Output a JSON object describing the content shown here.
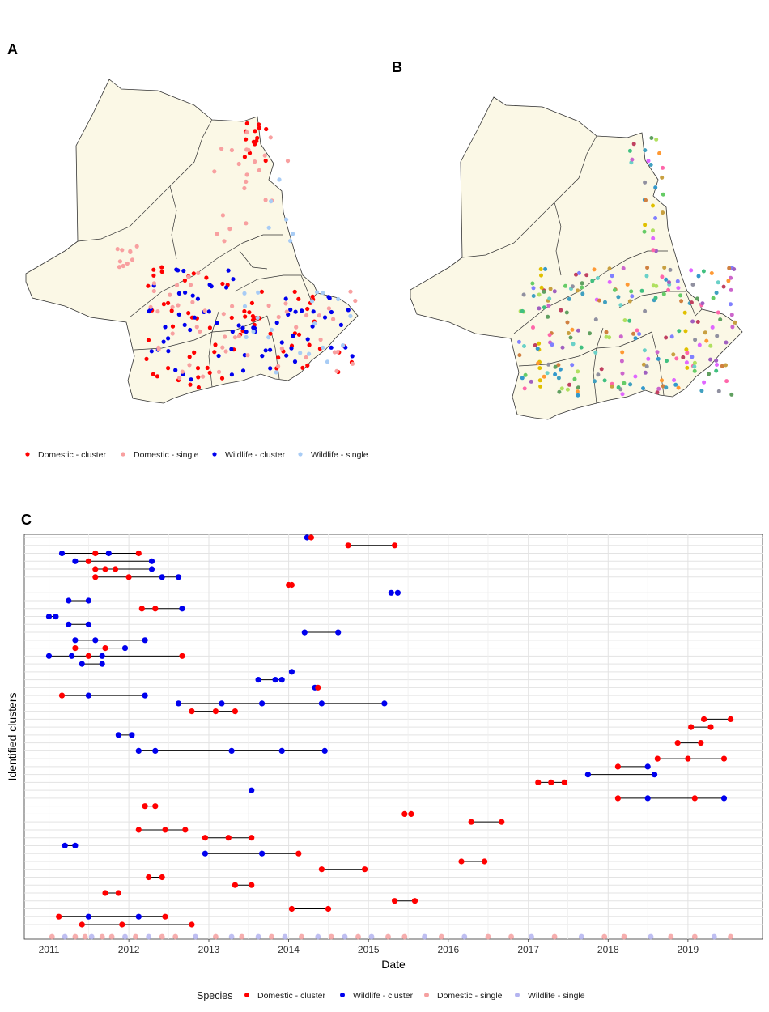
{
  "panels": {
    "a": "A",
    "b": "B",
    "c": "C"
  },
  "colors": {
    "domestic_cluster": "#ff0000",
    "domestic_single": "#f8a0a0",
    "wildlife_cluster": "#0000ee",
    "wildlife_single": "#a8ccf5",
    "timeline_domestic_single": "#f5a0a0",
    "timeline_wildlife_single": "#b4b4f0"
  },
  "map_legend": [
    {
      "label": "Domestic - cluster",
      "color": "#ff0000"
    },
    {
      "label": "Domestic - single",
      "color": "#f8a0a0"
    },
    {
      "label": "Wildlife - cluster",
      "color": "#0000ee"
    },
    {
      "label": "Wildlife - single",
      "color": "#a8ccf5"
    }
  ],
  "chart_data": {
    "type": "scatter",
    "xlabel": "Date",
    "ylabel": "Identified clusters",
    "xlim": [
      "2010-09-10",
      "2019-12-08"
    ],
    "x_ticks": [
      "2011",
      "2012",
      "2013",
      "2014",
      "2015",
      "2016",
      "2017",
      "2018",
      "2019"
    ],
    "cluster_count": 50,
    "grid": true,
    "legend_position": "bottom",
    "legend_title": "Species",
    "legend": [
      {
        "label": "Domestic - cluster",
        "color": "#ff0000"
      },
      {
        "label": "Wildlife - cluster",
        "color": "#0000ee"
      },
      {
        "label": "Domestic - single",
        "color": "#f5a0a0"
      },
      {
        "label": "Wildlife - single",
        "color": "#b4b4f0"
      }
    ],
    "clusters": [
      {
        "rank": 50,
        "points": [
          [
            "2014-03-26",
            "Wildlife - cluster"
          ],
          [
            "2014-04-14",
            "Domestic - cluster"
          ]
        ]
      },
      {
        "rank": 49,
        "points": [
          [
            "2014-09-30",
            "Domestic - cluster"
          ],
          [
            "2015-05-01",
            "Domestic - cluster"
          ]
        ]
      },
      {
        "rank": 48,
        "points": [
          [
            "2011-03-01",
            "Wildlife - cluster"
          ],
          [
            "2011-08-01",
            "Domestic - cluster"
          ],
          [
            "2011-10-01",
            "Wildlife - cluster"
          ],
          [
            "2012-02-15",
            "Domestic - cluster"
          ]
        ]
      },
      {
        "rank": 47,
        "points": [
          [
            "2011-05-01",
            "Wildlife - cluster"
          ],
          [
            "2011-07-01",
            "Domestic - cluster"
          ],
          [
            "2012-04-15",
            "Wildlife - cluster"
          ]
        ]
      },
      {
        "rank": 46,
        "points": [
          [
            "2011-08-01",
            "Domestic - cluster"
          ],
          [
            "2011-09-15",
            "Domestic - cluster"
          ],
          [
            "2011-11-01",
            "Domestic - cluster"
          ],
          [
            "2012-04-15",
            "Wildlife - cluster"
          ]
        ]
      },
      {
        "rank": 45,
        "points": [
          [
            "2011-08-01",
            "Domestic - cluster"
          ],
          [
            "2012-01-01",
            "Domestic - cluster"
          ],
          [
            "2012-06-01",
            "Wildlife - cluster"
          ],
          [
            "2012-08-15",
            "Wildlife - cluster"
          ]
        ]
      },
      {
        "rank": 44,
        "points": [
          [
            "2014-01-01",
            "Domestic - cluster"
          ],
          [
            "2014-01-15",
            "Domestic - cluster"
          ]
        ]
      },
      {
        "rank": 43,
        "points": [
          [
            "2015-04-15",
            "Wildlife - cluster"
          ],
          [
            "2015-05-15",
            "Wildlife - cluster"
          ]
        ]
      },
      {
        "rank": 42,
        "points": [
          [
            "2011-04-01",
            "Wildlife - cluster"
          ],
          [
            "2011-07-01",
            "Wildlife - cluster"
          ]
        ]
      },
      {
        "rank": 41,
        "points": [
          [
            "2012-03-01",
            "Domestic - cluster"
          ],
          [
            "2012-05-01",
            "Domestic - cluster"
          ],
          [
            "2012-09-01",
            "Wildlife - cluster"
          ]
        ]
      },
      {
        "rank": 40,
        "points": [
          [
            "2011-01-01",
            "Wildlife - cluster"
          ],
          [
            "2011-02-01",
            "Wildlife - cluster"
          ]
        ]
      },
      {
        "rank": 39,
        "points": [
          [
            "2011-04-01",
            "Wildlife - cluster"
          ],
          [
            "2011-07-01",
            "Wildlife - cluster"
          ]
        ]
      },
      {
        "rank": 38,
        "points": [
          [
            "2014-03-15",
            "Wildlife - cluster"
          ],
          [
            "2014-08-15",
            "Wildlife - cluster"
          ]
        ]
      },
      {
        "rank": 37,
        "points": [
          [
            "2011-05-01",
            "Wildlife - cluster"
          ],
          [
            "2011-08-01",
            "Wildlife - cluster"
          ],
          [
            "2012-03-15",
            "Wildlife - cluster"
          ]
        ]
      },
      {
        "rank": 36,
        "points": [
          [
            "2011-05-01",
            "Domestic - cluster"
          ],
          [
            "2011-09-15",
            "Domestic - cluster"
          ],
          [
            "2011-12-15",
            "Wildlife - cluster"
          ]
        ]
      },
      {
        "rank": 35,
        "points": [
          [
            "2011-01-01",
            "Wildlife - cluster"
          ],
          [
            "2011-04-15",
            "Wildlife - cluster"
          ],
          [
            "2011-07-01",
            "Domestic - cluster"
          ],
          [
            "2011-09-01",
            "Wildlife - cluster"
          ],
          [
            "2012-09-01",
            "Domestic - cluster"
          ]
        ]
      },
      {
        "rank": 34,
        "points": [
          [
            "2011-06-01",
            "Wildlife - cluster"
          ],
          [
            "2011-09-01",
            "Wildlife - cluster"
          ]
        ]
      },
      {
        "rank": 33,
        "points": [
          [
            "2014-01-15",
            "Wildlife - cluster"
          ]
        ]
      },
      {
        "rank": 32,
        "points": [
          [
            "2013-08-15",
            "Wildlife - cluster"
          ],
          [
            "2013-11-01",
            "Wildlife - cluster"
          ],
          [
            "2013-12-01",
            "Wildlife - cluster"
          ]
        ]
      },
      {
        "rank": 31,
        "points": [
          [
            "2014-05-01",
            "Wildlife - cluster"
          ],
          [
            "2014-05-15",
            "Domestic - cluster"
          ]
        ]
      },
      {
        "rank": 30,
        "points": [
          [
            "2011-03-01",
            "Domestic - cluster"
          ],
          [
            "2011-07-01",
            "Wildlife - cluster"
          ],
          [
            "2012-03-15",
            "Wildlife - cluster"
          ]
        ]
      },
      {
        "rank": 29,
        "points": [
          [
            "2012-08-15",
            "Wildlife - cluster"
          ],
          [
            "2013-03-01",
            "Wildlife - cluster"
          ],
          [
            "2013-09-01",
            "Wildlife - cluster"
          ],
          [
            "2014-06-01",
            "Wildlife - cluster"
          ],
          [
            "2015-03-15",
            "Wildlife - cluster"
          ]
        ]
      },
      {
        "rank": 28,
        "points": [
          [
            "2012-10-15",
            "Domestic - cluster"
          ],
          [
            "2013-02-01",
            "Domestic - cluster"
          ],
          [
            "2013-05-01",
            "Domestic - cluster"
          ]
        ]
      },
      {
        "rank": 27,
        "points": [
          [
            "2019-03-15",
            "Domestic - cluster"
          ],
          [
            "2019-07-15",
            "Domestic - cluster"
          ]
        ]
      },
      {
        "rank": 26,
        "points": [
          [
            "2019-01-15",
            "Domestic - cluster"
          ],
          [
            "2019-04-15",
            "Domestic - cluster"
          ]
        ]
      },
      {
        "rank": 25,
        "points": [
          [
            "2011-11-15",
            "Wildlife - cluster"
          ],
          [
            "2012-01-15",
            "Wildlife - cluster"
          ]
        ]
      },
      {
        "rank": 24,
        "points": [
          [
            "2018-11-15",
            "Domestic - cluster"
          ],
          [
            "2019-03-01",
            "Domestic - cluster"
          ]
        ]
      },
      {
        "rank": 23,
        "points": [
          [
            "2012-02-15",
            "Wildlife - cluster"
          ],
          [
            "2012-05-01",
            "Wildlife - cluster"
          ],
          [
            "2013-04-15",
            "Wildlife - cluster"
          ],
          [
            "2013-12-01",
            "Wildlife - cluster"
          ],
          [
            "2014-06-15",
            "Wildlife - cluster"
          ]
        ]
      },
      {
        "rank": 22,
        "points": [
          [
            "2018-08-15",
            "Domestic - cluster"
          ],
          [
            "2019-01-01",
            "Domestic - cluster"
          ],
          [
            "2019-06-15",
            "Domestic - cluster"
          ]
        ]
      },
      {
        "rank": 21,
        "points": [
          [
            "2018-02-15",
            "Domestic - cluster"
          ],
          [
            "2018-07-01",
            "Wildlife - cluster"
          ]
        ]
      },
      {
        "rank": 20,
        "points": [
          [
            "2017-10-01",
            "Wildlife - cluster"
          ],
          [
            "2018-08-01",
            "Wildlife - cluster"
          ]
        ]
      },
      {
        "rank": 19,
        "points": [
          [
            "2017-02-15",
            "Domestic - cluster"
          ],
          [
            "2017-04-15",
            "Domestic - cluster"
          ],
          [
            "2017-06-15",
            "Domestic - cluster"
          ]
        ]
      },
      {
        "rank": 18,
        "points": [
          [
            "2013-07-15",
            "Wildlife - cluster"
          ]
        ]
      },
      {
        "rank": 17,
        "points": [
          [
            "2018-02-15",
            "Domestic - cluster"
          ],
          [
            "2018-07-01",
            "Wildlife - cluster"
          ],
          [
            "2019-02-01",
            "Domestic - cluster"
          ],
          [
            "2019-06-15",
            "Wildlife - cluster"
          ]
        ]
      },
      {
        "rank": 16,
        "points": [
          [
            "2012-03-15",
            "Domestic - cluster"
          ],
          [
            "2012-05-01",
            "Domestic - cluster"
          ]
        ]
      },
      {
        "rank": 15,
        "points": [
          [
            "2015-06-15",
            "Domestic - cluster"
          ],
          [
            "2015-07-15",
            "Domestic - cluster"
          ]
        ]
      },
      {
        "rank": 14,
        "points": [
          [
            "2016-04-15",
            "Domestic - cluster"
          ],
          [
            "2016-09-01",
            "Domestic - cluster"
          ]
        ]
      },
      {
        "rank": 13,
        "points": [
          [
            "2012-02-15",
            "Domestic - cluster"
          ],
          [
            "2012-06-15",
            "Domestic - cluster"
          ],
          [
            "2012-09-15",
            "Domestic - cluster"
          ]
        ]
      },
      {
        "rank": 12,
        "points": [
          [
            "2012-12-15",
            "Domestic - cluster"
          ],
          [
            "2013-04-01",
            "Domestic - cluster"
          ],
          [
            "2013-07-15",
            "Domestic - cluster"
          ]
        ]
      },
      {
        "rank": 11,
        "points": [
          [
            "2011-03-15",
            "Wildlife - cluster"
          ],
          [
            "2011-05-01",
            "Wildlife - cluster"
          ]
        ]
      },
      {
        "rank": 10,
        "points": [
          [
            "2012-12-15",
            "Wildlife - cluster"
          ],
          [
            "2013-09-01",
            "Wildlife - cluster"
          ],
          [
            "2014-02-15",
            "Domestic - cluster"
          ]
        ]
      },
      {
        "rank": 9,
        "points": [
          [
            "2016-03-01",
            "Domestic - cluster"
          ],
          [
            "2016-06-15",
            "Domestic - cluster"
          ]
        ]
      },
      {
        "rank": 8,
        "points": [
          [
            "2014-06-01",
            "Domestic - cluster"
          ],
          [
            "2014-12-15",
            "Domestic - cluster"
          ]
        ]
      },
      {
        "rank": 7,
        "points": [
          [
            "2012-04-01",
            "Domestic - cluster"
          ],
          [
            "2012-06-01",
            "Domestic - cluster"
          ]
        ]
      },
      {
        "rank": 6,
        "points": [
          [
            "2013-05-01",
            "Domestic - cluster"
          ],
          [
            "2013-07-15",
            "Domestic - cluster"
          ]
        ]
      },
      {
        "rank": 5,
        "points": [
          [
            "2011-09-15",
            "Domestic - cluster"
          ],
          [
            "2011-11-15",
            "Domestic - cluster"
          ]
        ]
      },
      {
        "rank": 4,
        "points": [
          [
            "2015-05-01",
            "Domestic - cluster"
          ],
          [
            "2015-08-01",
            "Domestic - cluster"
          ]
        ]
      },
      {
        "rank": 3,
        "points": [
          [
            "2014-01-15",
            "Domestic - cluster"
          ],
          [
            "2014-07-01",
            "Domestic - cluster"
          ]
        ]
      },
      {
        "rank": 2,
        "points": [
          [
            "2011-02-15",
            "Domestic - cluster"
          ],
          [
            "2011-07-01",
            "Wildlife - cluster"
          ],
          [
            "2012-02-15",
            "Wildlife - cluster"
          ],
          [
            "2012-06-15",
            "Domestic - cluster"
          ]
        ]
      },
      {
        "rank": 1,
        "points": [
          [
            "2011-06-01",
            "Domestic - cluster"
          ],
          [
            "2011-12-01",
            "Domestic - cluster"
          ],
          [
            "2012-10-15",
            "Domestic - cluster"
          ]
        ]
      }
    ],
    "singles": [
      {
        "date": "2011-01-15",
        "type": "Domestic - single"
      },
      {
        "date": "2011-03-15",
        "type": "Wildlife - single"
      },
      {
        "date": "2011-05-01",
        "type": "Domestic - single"
      },
      {
        "date": "2011-06-15",
        "type": "Domestic - single"
      },
      {
        "date": "2011-07-15",
        "type": "Wildlife - single"
      },
      {
        "date": "2011-09-01",
        "type": "Domestic - single"
      },
      {
        "date": "2011-10-15",
        "type": "Domestic - single"
      },
      {
        "date": "2011-12-15",
        "type": "Wildlife - single"
      },
      {
        "date": "2012-02-01",
        "type": "Domestic - single"
      },
      {
        "date": "2012-04-01",
        "type": "Wildlife - single"
      },
      {
        "date": "2012-06-01",
        "type": "Domestic - single"
      },
      {
        "date": "2012-08-01",
        "type": "Domestic - single"
      },
      {
        "date": "2012-11-01",
        "type": "Wildlife - single"
      },
      {
        "date": "2013-02-01",
        "type": "Domestic - single"
      },
      {
        "date": "2013-04-15",
        "type": "Wildlife - single"
      },
      {
        "date": "2013-06-01",
        "type": "Domestic - single"
      },
      {
        "date": "2013-08-15",
        "type": "Wildlife - single"
      },
      {
        "date": "2013-10-15",
        "type": "Domestic - single"
      },
      {
        "date": "2013-12-15",
        "type": "Wildlife - single"
      },
      {
        "date": "2014-03-01",
        "type": "Domestic - single"
      },
      {
        "date": "2014-05-15",
        "type": "Wildlife - single"
      },
      {
        "date": "2014-07-15",
        "type": "Domestic - single"
      },
      {
        "date": "2014-09-15",
        "type": "Wildlife - single"
      },
      {
        "date": "2014-11-15",
        "type": "Domestic - single"
      },
      {
        "date": "2015-01-15",
        "type": "Wildlife - single"
      },
      {
        "date": "2015-04-01",
        "type": "Domestic - single"
      },
      {
        "date": "2015-06-15",
        "type": "Domestic - single"
      },
      {
        "date": "2015-09-15",
        "type": "Wildlife - single"
      },
      {
        "date": "2015-12-01",
        "type": "Domestic - single"
      },
      {
        "date": "2016-03-15",
        "type": "Wildlife - single"
      },
      {
        "date": "2016-07-01",
        "type": "Domestic - single"
      },
      {
        "date": "2016-10-15",
        "type": "Domestic - single"
      },
      {
        "date": "2017-01-15",
        "type": "Wildlife - single"
      },
      {
        "date": "2017-05-01",
        "type": "Domestic - single"
      },
      {
        "date": "2017-09-01",
        "type": "Wildlife - single"
      },
      {
        "date": "2017-12-15",
        "type": "Domestic - single"
      },
      {
        "date": "2018-03-15",
        "type": "Domestic - single"
      },
      {
        "date": "2018-07-15",
        "type": "Wildlife - single"
      },
      {
        "date": "2018-10-15",
        "type": "Domestic - single"
      },
      {
        "date": "2019-02-01",
        "type": "Domestic - single"
      },
      {
        "date": "2019-05-01",
        "type": "Wildlife - single"
      },
      {
        "date": "2019-07-15",
        "type": "Domestic - single"
      }
    ]
  }
}
